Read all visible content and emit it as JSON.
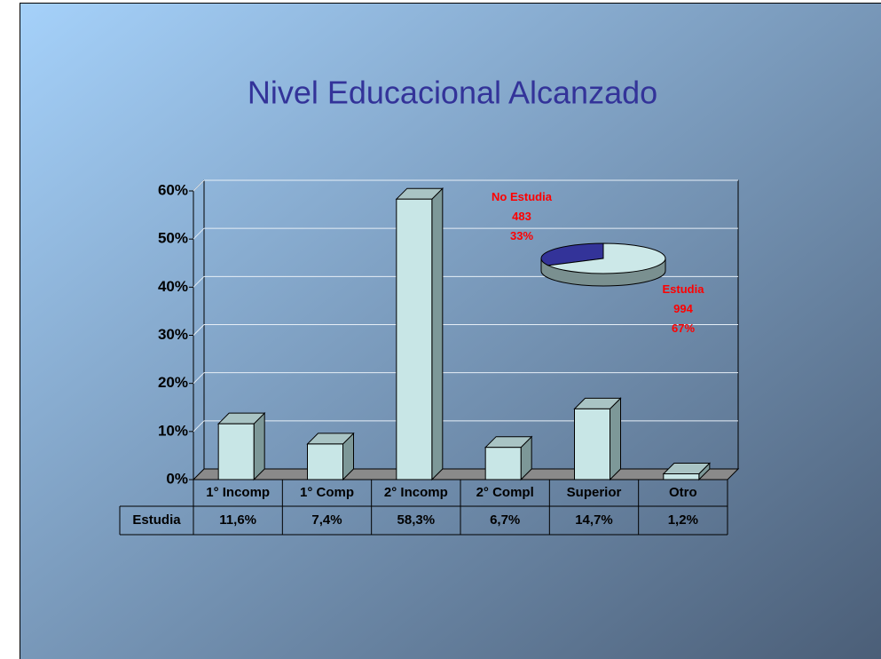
{
  "chart_data": [
    {
      "type": "bar3d",
      "title": "Nivel Educacional Alcanzado",
      "categories": [
        "1° Incomp",
        "1° Comp",
        "2° Incomp",
        "2° Compl",
        "Superior",
        "Otro"
      ],
      "series": [
        {
          "name": "Estudia",
          "color": "#c8e6e6",
          "values": [
            11.6,
            7.4,
            58.3,
            6.7,
            14.7,
            1.2
          ],
          "value_labels": [
            "11,6%",
            "7,4%",
            "58,3%",
            "6,7%",
            "14,7%",
            "1,2%"
          ]
        }
      ],
      "ylim": [
        0,
        60
      ],
      "yticks": [
        {
          "value": 0,
          "label": "0%"
        },
        {
          "value": 10,
          "label": "10%"
        },
        {
          "value": 20,
          "label": "20%"
        },
        {
          "value": 30,
          "label": "30%"
        },
        {
          "value": 40,
          "label": "40%"
        },
        {
          "value": 50,
          "label": "50%"
        },
        {
          "value": 60,
          "label": "60%"
        }
      ],
      "grid": true
    },
    {
      "type": "pie3d",
      "categories": [
        "No Estudia",
        "Estudia"
      ],
      "values": [
        483,
        994
      ],
      "percentages": [
        33,
        67
      ],
      "percentage_labels": [
        "33%",
        "67%"
      ],
      "colors": [
        "#333399",
        "#cce8e8"
      ]
    }
  ]
}
